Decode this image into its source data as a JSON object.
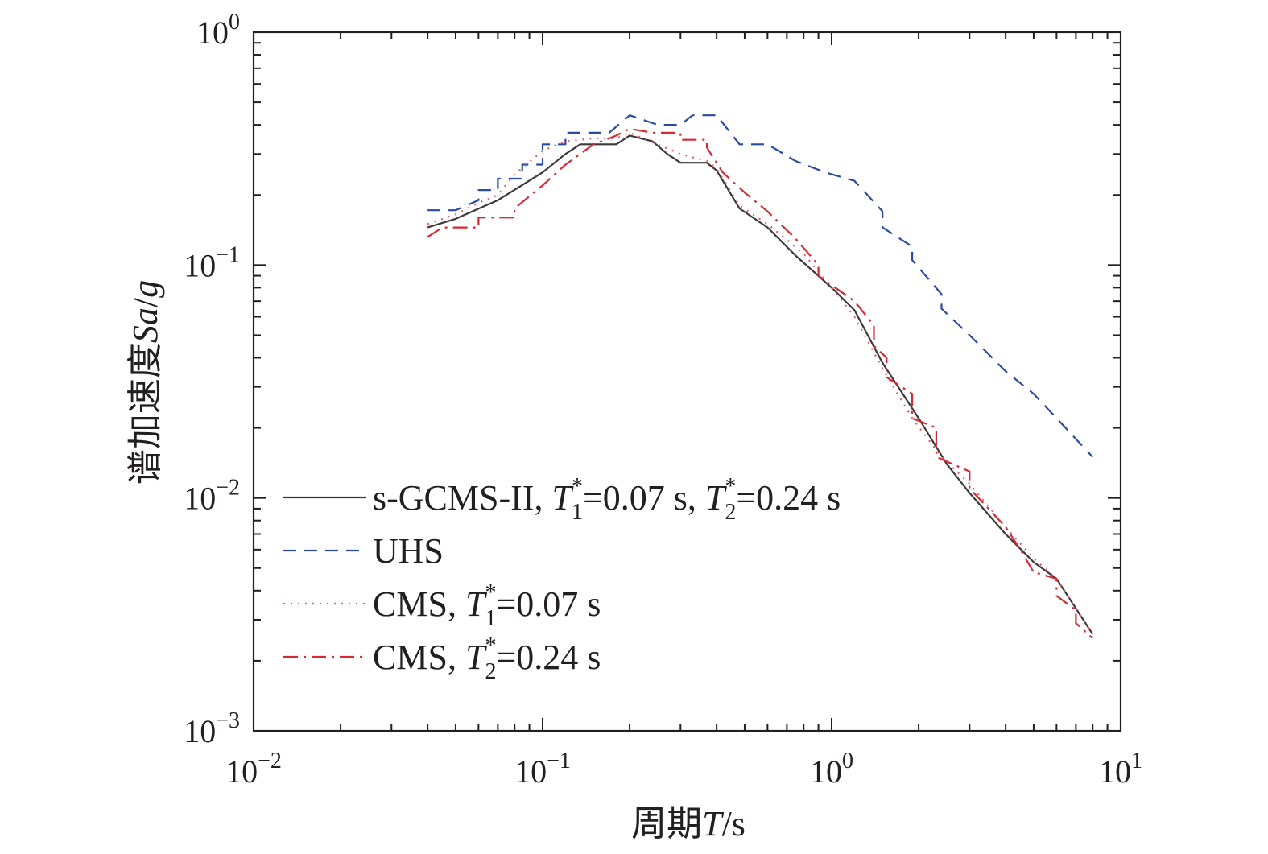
{
  "chart_data": {
    "type": "line",
    "xscale": "log",
    "yscale": "log",
    "xlim": [
      0.01,
      10
    ],
    "ylim": [
      0.001,
      1
    ],
    "xlabel": {
      "prefix": "周期",
      "var": "T",
      "suffix": "/s"
    },
    "ylabel": {
      "prefix": "谱加速度",
      "var": "Sa",
      "suffix": "/",
      "var2": "g"
    },
    "xticks": [
      {
        "value": 0.01,
        "base": "10",
        "exp": "−2"
      },
      {
        "value": 0.1,
        "base": "10",
        "exp": "−1"
      },
      {
        "value": 1,
        "base": "10",
        "exp": "0"
      },
      {
        "value": 10,
        "base": "10",
        "exp": "1"
      }
    ],
    "yticks": [
      {
        "value": 0.001,
        "base": "10",
        "exp": "−3"
      },
      {
        "value": 0.01,
        "base": "10",
        "exp": "−2"
      },
      {
        "value": 0.1,
        "base": "10",
        "exp": "−1"
      },
      {
        "value": 1,
        "base": "10",
        "exp": "0"
      }
    ],
    "grid": false,
    "legend_position": "lower-left",
    "series": [
      {
        "name": "s-GCMS-II, T1*=0.07 s, T2*=0.24 s",
        "legend": {
          "text1": "s-GCMS-II, ",
          "v1": "T",
          "sub1": "1",
          "sup1": "*",
          "mid": "=0.07 s, ",
          "v2": "T",
          "sub2": "2",
          "sup2": "*",
          "end": "=0.24 s"
        },
        "color": "#3a3a3a",
        "dash": "solid",
        "x": [
          0.04,
          0.05,
          0.07,
          0.1,
          0.12,
          0.135,
          0.18,
          0.2,
          0.24,
          0.27,
          0.3,
          0.37,
          0.4,
          0.48,
          0.6,
          0.75,
          1.0,
          1.2,
          1.5,
          2.0,
          2.5,
          3.0,
          4.0,
          5.0,
          6.0,
          8.0
        ],
        "y": [
          0.145,
          0.158,
          0.19,
          0.25,
          0.3,
          0.33,
          0.33,
          0.36,
          0.34,
          0.3,
          0.275,
          0.275,
          0.255,
          0.175,
          0.145,
          0.11,
          0.08,
          0.064,
          0.038,
          0.022,
          0.014,
          0.0105,
          0.007,
          0.0053,
          0.0045,
          0.0026
        ]
      },
      {
        "name": "UHS",
        "legend": {
          "text1": "UHS"
        },
        "color": "#2b4ba0",
        "dash": "dashed",
        "x": [
          0.04,
          0.05,
          0.06,
          0.06,
          0.07,
          0.07,
          0.085,
          0.085,
          0.1,
          0.1,
          0.12,
          0.12,
          0.17,
          0.2,
          0.25,
          0.3,
          0.33,
          0.4,
          0.48,
          0.6,
          0.75,
          0.95,
          1.2,
          1.5,
          1.5,
          1.9,
          1.9,
          2.4,
          2.4,
          3.0,
          4.0,
          5.0,
          6.0,
          8.0
        ],
        "y": [
          0.172,
          0.172,
          0.19,
          0.21,
          0.21,
          0.235,
          0.235,
          0.27,
          0.27,
          0.33,
          0.33,
          0.37,
          0.37,
          0.44,
          0.4,
          0.4,
          0.44,
          0.44,
          0.33,
          0.33,
          0.28,
          0.25,
          0.23,
          0.17,
          0.145,
          0.12,
          0.105,
          0.075,
          0.065,
          0.05,
          0.035,
          0.028,
          0.022,
          0.015
        ]
      },
      {
        "name": "CMS, T1*=0.07 s",
        "legend": {
          "text1": "CMS, ",
          "v1": "T",
          "sub1": "1",
          "sup1": "*",
          "mid": "=0.07 s"
        },
        "color": "#e0606a",
        "dash": "dotted",
        "x": [
          0.04,
          0.05,
          0.06,
          0.07,
          0.08,
          0.1,
          0.12,
          0.15,
          0.18,
          0.2,
          0.3,
          0.37,
          0.4,
          0.48,
          0.6,
          0.8,
          1.0,
          1.2,
          1.5,
          1.9,
          2.4,
          3.0,
          4.0,
          5.0,
          6.0,
          8.0
        ],
        "y": [
          0.15,
          0.165,
          0.185,
          0.2,
          0.245,
          0.31,
          0.34,
          0.35,
          0.35,
          0.37,
          0.3,
          0.28,
          0.26,
          0.18,
          0.15,
          0.112,
          0.08,
          0.06,
          0.036,
          0.022,
          0.015,
          0.0115,
          0.0075,
          0.0055,
          0.0045,
          0.0026
        ]
      },
      {
        "name": "CMS, T2*=0.24 s",
        "legend": {
          "text1": "CMS, ",
          "v1": "T",
          "sub1": "2",
          "sup1": "*",
          "mid": "=0.24 s"
        },
        "color": "#d42a33",
        "dash": "dashdot",
        "x": [
          0.04,
          0.045,
          0.06,
          0.06,
          0.08,
          0.08,
          0.1,
          0.12,
          0.15,
          0.18,
          0.2,
          0.24,
          0.3,
          0.3,
          0.37,
          0.37,
          0.42,
          0.5,
          0.6,
          0.75,
          0.9,
          0.9,
          1.2,
          1.4,
          1.4,
          1.55,
          1.55,
          1.9,
          1.9,
          2.3,
          2.3,
          3.0,
          3.0,
          4.0,
          4.5,
          5.0,
          6.0,
          6.0,
          7.0,
          7.0,
          8.0
        ],
        "y": [
          0.132,
          0.145,
          0.145,
          0.16,
          0.16,
          0.175,
          0.22,
          0.27,
          0.33,
          0.36,
          0.385,
          0.37,
          0.37,
          0.345,
          0.345,
          0.32,
          0.25,
          0.205,
          0.17,
          0.13,
          0.1,
          0.09,
          0.07,
          0.055,
          0.045,
          0.04,
          0.033,
          0.028,
          0.022,
          0.02,
          0.015,
          0.013,
          0.011,
          0.0075,
          0.006,
          0.0048,
          0.0045,
          0.0038,
          0.0033,
          0.0029,
          0.0025
        ]
      }
    ]
  }
}
